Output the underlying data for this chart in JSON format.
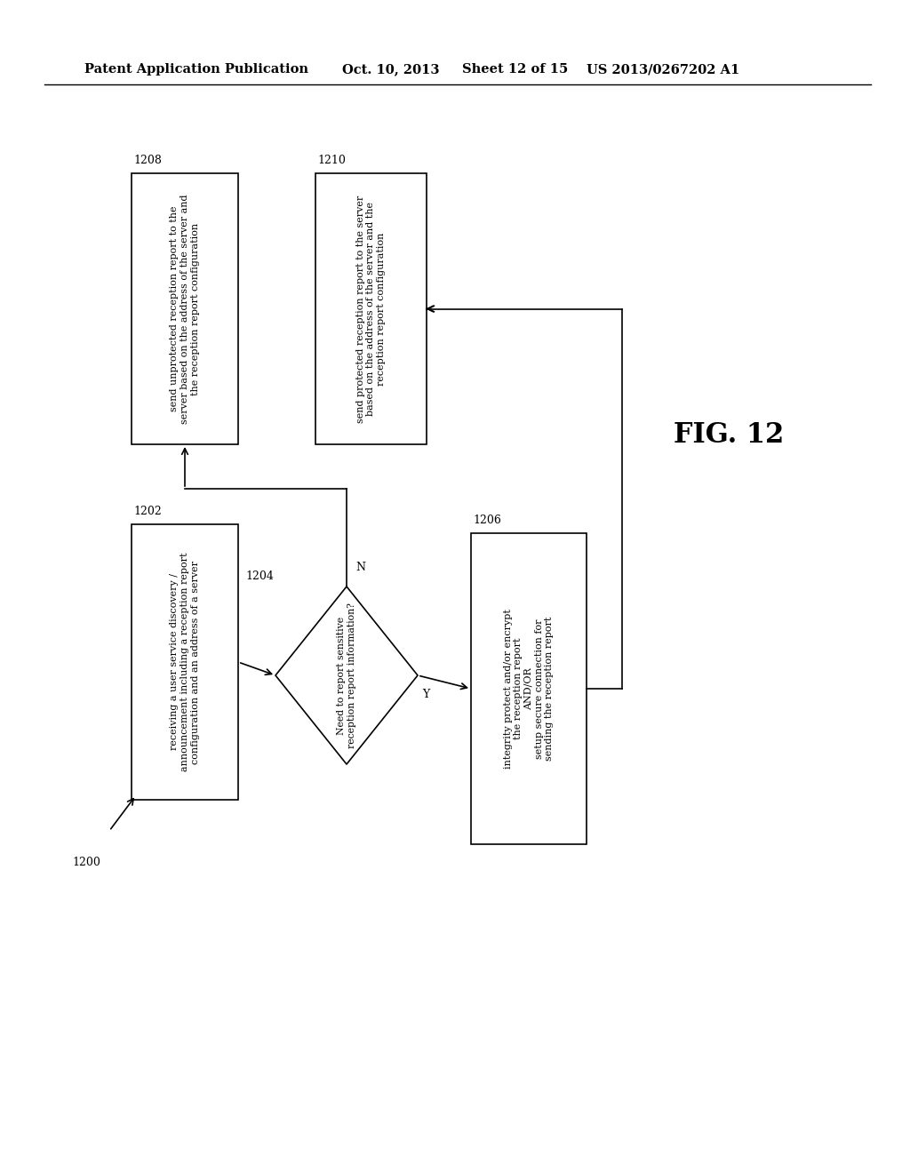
{
  "background_color": "#ffffff",
  "header_text": "Patent Application Publication",
  "header_date": "Oct. 10, 2013",
  "header_sheet": "Sheet 12 of 15",
  "header_patent": "US 2013/0267202 A1",
  "fig_label": "FIG. 12",
  "box1202_text": "receiving a user service discovery /\nannouncement including a reception report\nconfiguration and an address of a server",
  "box1204_text": "Need to report sensitive\nreception report information?",
  "box1206_text": "integrity protect and/or encrypt\nthe reception report\nAND/OR\nsetup secure connection for\nsending the reception report",
  "box1208_text": "send unprotected reception report to the\nserver based on the address of the server and\nthe reception report configuration",
  "box1210_text": "send protected reception report to the server\nbased on the address of the server and the\nreception report configuration"
}
